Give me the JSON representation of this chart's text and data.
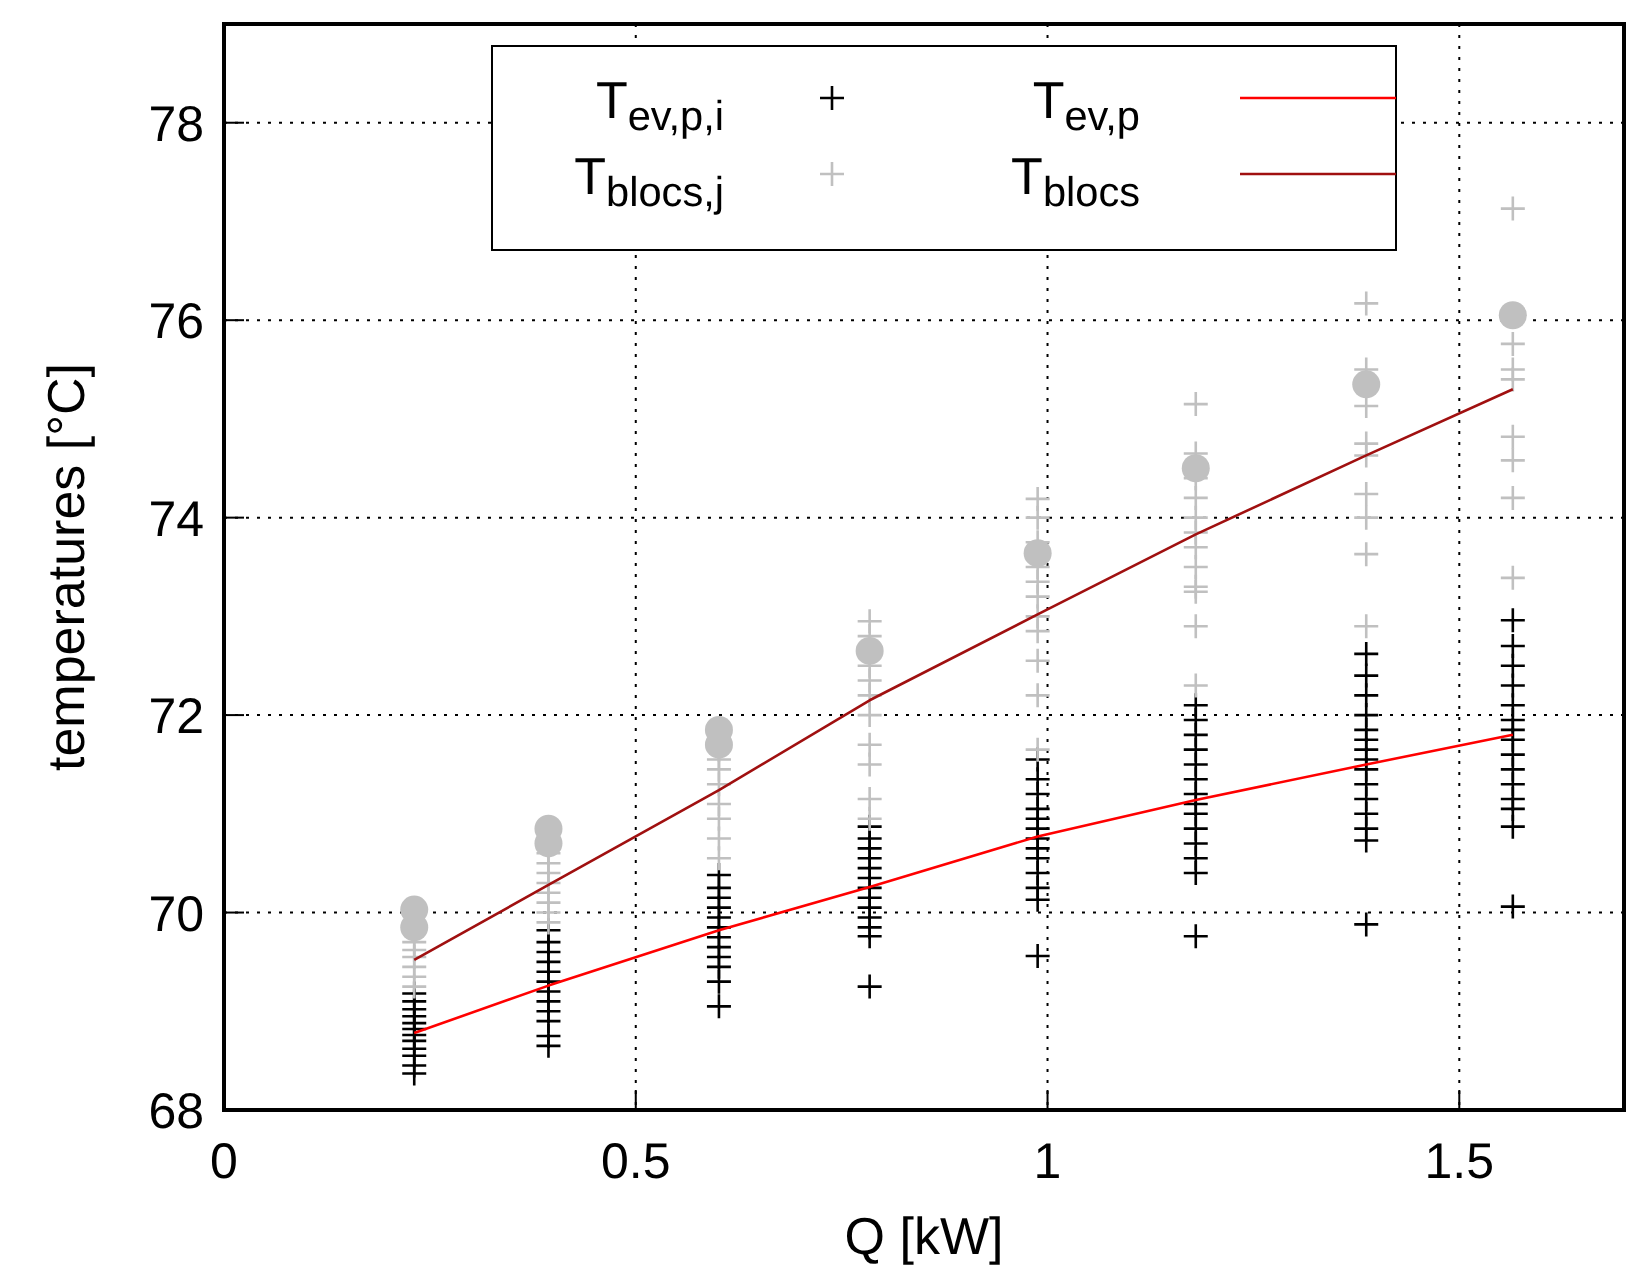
{
  "chart_data": {
    "type": "scatter",
    "xlabel": "Q [kW]",
    "ylabel": "temperatures [°C]",
    "xlim": [
      0,
      1.7
    ],
    "ylim": [
      68,
      79
    ],
    "xticks": [
      0,
      0.5,
      1,
      1.5
    ],
    "yticks": [
      68,
      70,
      72,
      74,
      76,
      78
    ],
    "grid": true,
    "legend": "top",
    "series": [
      {
        "name": "T$_{ev,p,i}$",
        "color": "#000000",
        "marker": "cross",
        "x": [
          0.231,
          0.231,
          0.231,
          0.231,
          0.231,
          0.231,
          0.231,
          0.231,
          0.231,
          0.231,
          0.231,
          0.231,
          0.394,
          0.394,
          0.394,
          0.394,
          0.394,
          0.394,
          0.394,
          0.394,
          0.394,
          0.394,
          0.394,
          0.394,
          0.601,
          0.601,
          0.601,
          0.601,
          0.601,
          0.601,
          0.601,
          0.601,
          0.601,
          0.601,
          0.601,
          0.601,
          0.784,
          0.784,
          0.784,
          0.784,
          0.784,
          0.784,
          0.784,
          0.784,
          0.784,
          0.784,
          0.784,
          0.784,
          0.784,
          0.988,
          0.988,
          0.988,
          0.988,
          0.988,
          0.988,
          0.988,
          0.988,
          0.988,
          0.988,
          0.988,
          0.988,
          0.988,
          1.18,
          1.18,
          1.18,
          1.18,
          1.18,
          1.18,
          1.18,
          1.18,
          1.18,
          1.18,
          1.18,
          1.18,
          1.18,
          1.18,
          1.387,
          1.387,
          1.387,
          1.387,
          1.387,
          1.387,
          1.387,
          1.387,
          1.387,
          1.387,
          1.387,
          1.387,
          1.387,
          1.387,
          1.387,
          1.565,
          1.565,
          1.565,
          1.565,
          1.565,
          1.565,
          1.565,
          1.565,
          1.565,
          1.565,
          1.565,
          1.565,
          1.565,
          1.565,
          1.565
        ],
        "values": [
          68.37,
          68.45,
          68.55,
          68.62,
          68.7,
          68.76,
          68.82,
          68.88,
          68.95,
          69.02,
          69.1,
          69.18,
          68.65,
          68.75,
          68.9,
          69.0,
          69.1,
          69.2,
          69.3,
          69.4,
          69.5,
          69.6,
          69.7,
          69.82,
          69.05,
          69.3,
          69.45,
          69.55,
          69.65,
          69.75,
          69.85,
          69.95,
          70.05,
          70.15,
          70.25,
          70.38,
          69.25,
          69.76,
          69.85,
          69.95,
          70.05,
          70.15,
          70.25,
          70.35,
          70.45,
          70.55,
          70.65,
          70.75,
          70.87,
          69.56,
          70.13,
          70.25,
          70.4,
          70.55,
          70.65,
          70.75,
          70.85,
          70.95,
          71.05,
          71.2,
          71.35,
          71.55,
          69.76,
          70.4,
          70.55,
          70.7,
          70.85,
          71.0,
          71.1,
          71.2,
          71.35,
          71.5,
          71.65,
          71.8,
          71.95,
          72.1,
          69.88,
          70.73,
          70.85,
          71.0,
          71.15,
          71.3,
          71.45,
          71.55,
          71.65,
          71.75,
          71.85,
          72.0,
          72.2,
          72.4,
          72.62,
          70.06,
          70.87,
          71.05,
          71.15,
          71.3,
          71.45,
          71.6,
          71.75,
          71.85,
          71.95,
          72.1,
          72.3,
          72.5,
          72.7,
          72.96
        ]
      },
      {
        "name": "T$_{blocs,j}$",
        "color": "#c0c0c0",
        "marker": "cross",
        "x": [
          0.231,
          0.231,
          0.231,
          0.231,
          0.231,
          0.231,
          0.394,
          0.394,
          0.394,
          0.394,
          0.394,
          0.394,
          0.394,
          0.394,
          0.601,
          0.601,
          0.601,
          0.601,
          0.601,
          0.601,
          0.601,
          0.601,
          0.784,
          0.784,
          0.784,
          0.784,
          0.784,
          0.784,
          0.784,
          0.784,
          0.784,
          0.784,
          0.988,
          0.988,
          0.988,
          0.988,
          0.988,
          0.988,
          0.988,
          0.988,
          0.988,
          0.988,
          0.988,
          1.18,
          1.18,
          1.18,
          1.18,
          1.18,
          1.18,
          1.18,
          1.18,
          1.18,
          1.18,
          1.18,
          1.18,
          1.387,
          1.387,
          1.387,
          1.387,
          1.387,
          1.387,
          1.387,
          1.387,
          1.387,
          1.565,
          1.565,
          1.565,
          1.565,
          1.565,
          1.565,
          1.565,
          1.565
        ],
        "values": [
          69.25,
          69.35,
          69.45,
          69.55,
          69.62,
          69.7,
          69.9,
          70.0,
          70.1,
          70.2,
          70.3,
          70.4,
          70.5,
          70.6,
          70.55,
          70.75,
          70.95,
          71.1,
          71.3,
          71.45,
          71.55,
          71.65,
          70.95,
          71.15,
          71.5,
          71.7,
          72.0,
          72.2,
          72.35,
          72.5,
          72.8,
          72.95,
          71.65,
          72.2,
          72.55,
          72.85,
          73.0,
          73.2,
          73.35,
          73.5,
          73.75,
          74.0,
          74.19,
          72.3,
          72.9,
          73.25,
          73.3,
          73.5,
          73.7,
          73.85,
          74.0,
          74.2,
          74.4,
          74.65,
          75.15,
          72.9,
          73.63,
          74.0,
          74.24,
          74.63,
          74.75,
          75.13,
          75.5,
          76.17,
          73.39,
          74.2,
          74.58,
          74.82,
          75.4,
          75.5,
          75.76,
          77.13
        ]
      },
      {
        "name": "T$_{ev,p}$",
        "type": "line",
        "color": "#ff0000",
        "marker": "none",
        "line_style": "solid",
        "x": [
          0.231,
          0.394,
          0.601,
          0.784,
          0.988,
          1.18,
          1.387,
          1.565
        ],
        "values": [
          68.78,
          69.26,
          69.82,
          70.26,
          70.77,
          71.14,
          71.5,
          71.8
        ]
      },
      {
        "name": "T$_{blocs}$",
        "type": "line",
        "color": "#a01010",
        "marker": "none",
        "line_style": "solid",
        "x": [
          0.231,
          0.394,
          0.601,
          0.784,
          0.988,
          1.18,
          1.387,
          1.565
        ],
        "values": [
          69.52,
          70.28,
          71.24,
          72.15,
          73.02,
          73.83,
          74.63,
          75.3
        ]
      },
      {
        "color": "#c0c0c0",
        "marker": "circle",
        "x": [
          0.231,
          0.231,
          0.394,
          0.394,
          0.601,
          0.601,
          0.784,
          0.988,
          1.18,
          1.387,
          1.565
        ],
        "values": [
          69.85,
          70.03,
          70.7,
          70.85,
          71.7,
          71.85,
          72.65,
          73.64,
          74.5,
          75.35,
          76.05
        ]
      }
    ]
  }
}
